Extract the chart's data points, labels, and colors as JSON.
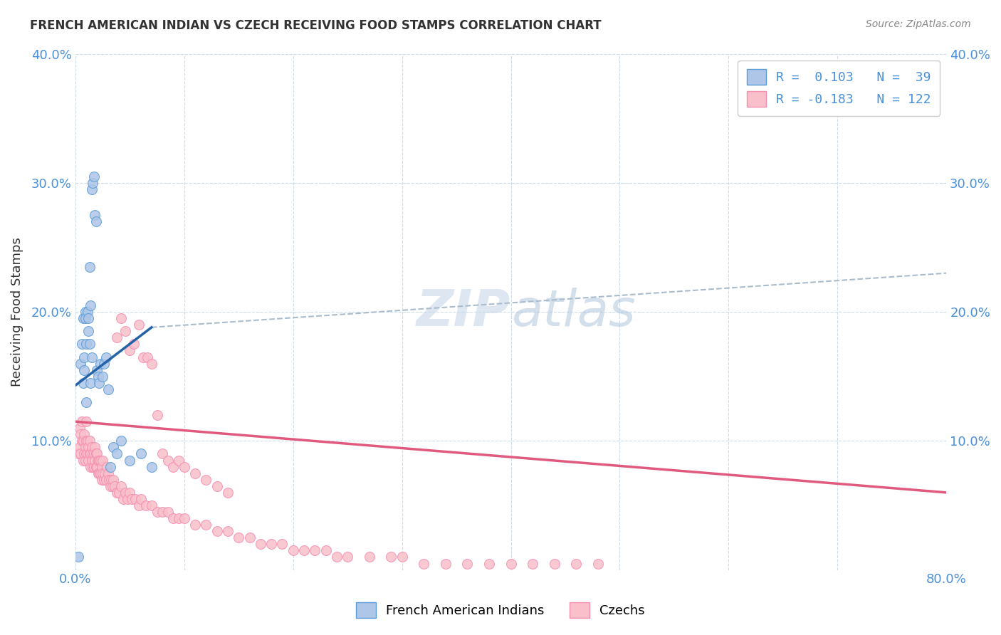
{
  "title": "FRENCH AMERICAN INDIAN VS CZECH RECEIVING FOOD STAMPS CORRELATION CHART",
  "source": "Source: ZipAtlas.com",
  "ylabel": "Receiving Food Stamps",
  "xlim": [
    0,
    0.8
  ],
  "ylim": [
    0,
    0.4
  ],
  "xticks": [
    0.0,
    0.1,
    0.2,
    0.3,
    0.4,
    0.5,
    0.6,
    0.7,
    0.8
  ],
  "yticks": [
    0.0,
    0.1,
    0.2,
    0.3,
    0.4
  ],
  "watermark": "ZIPatlas",
  "blue_color": "#5b9bd5",
  "pink_color": "#f48fb1",
  "blue_fill": "#aec6e8",
  "pink_fill": "#f9c0cb",
  "blue_line_color": "#2563a8",
  "pink_line_color": "#e05a80",
  "dashed_line_color": "#aabccc",
  "background_color": "#ffffff",
  "grid_color": "#c8d8e8",
  "blue_R": 0.103,
  "blue_N": 39,
  "pink_R": -0.183,
  "pink_N": 122,
  "blue_scatter_x": [
    0.003,
    0.005,
    0.006,
    0.007,
    0.007,
    0.008,
    0.008,
    0.009,
    0.009,
    0.01,
    0.01,
    0.011,
    0.012,
    0.012,
    0.013,
    0.013,
    0.014,
    0.014,
    0.015,
    0.015,
    0.016,
    0.017,
    0.018,
    0.019,
    0.02,
    0.021,
    0.022,
    0.023,
    0.025,
    0.026,
    0.028,
    0.03,
    0.032,
    0.035,
    0.038,
    0.042,
    0.05,
    0.06,
    0.07
  ],
  "blue_scatter_y": [
    0.01,
    0.16,
    0.175,
    0.145,
    0.195,
    0.155,
    0.165,
    0.2,
    0.195,
    0.175,
    0.13,
    0.2,
    0.195,
    0.185,
    0.175,
    0.235,
    0.205,
    0.145,
    0.165,
    0.295,
    0.3,
    0.305,
    0.275,
    0.27,
    0.155,
    0.15,
    0.145,
    0.16,
    0.15,
    0.16,
    0.165,
    0.14,
    0.08,
    0.095,
    0.09,
    0.1,
    0.085,
    0.09,
    0.08
  ],
  "pink_scatter_x": [
    0.003,
    0.004,
    0.004,
    0.005,
    0.005,
    0.006,
    0.006,
    0.007,
    0.007,
    0.008,
    0.008,
    0.009,
    0.009,
    0.01,
    0.01,
    0.01,
    0.011,
    0.011,
    0.012,
    0.012,
    0.013,
    0.013,
    0.014,
    0.014,
    0.015,
    0.015,
    0.016,
    0.016,
    0.017,
    0.017,
    0.018,
    0.018,
    0.019,
    0.019,
    0.02,
    0.02,
    0.021,
    0.021,
    0.022,
    0.022,
    0.023,
    0.023,
    0.024,
    0.024,
    0.025,
    0.025,
    0.026,
    0.027,
    0.028,
    0.029,
    0.03,
    0.031,
    0.032,
    0.033,
    0.034,
    0.035,
    0.036,
    0.038,
    0.04,
    0.042,
    0.044,
    0.046,
    0.048,
    0.05,
    0.052,
    0.055,
    0.058,
    0.06,
    0.065,
    0.07,
    0.075,
    0.08,
    0.085,
    0.09,
    0.095,
    0.1,
    0.11,
    0.12,
    0.13,
    0.14,
    0.15,
    0.16,
    0.17,
    0.18,
    0.19,
    0.2,
    0.21,
    0.22,
    0.23,
    0.24,
    0.25,
    0.27,
    0.29,
    0.3,
    0.32,
    0.34,
    0.36,
    0.38,
    0.4,
    0.42,
    0.44,
    0.46,
    0.48,
    0.038,
    0.042,
    0.046,
    0.05,
    0.054,
    0.058,
    0.062,
    0.066,
    0.07,
    0.075,
    0.08,
    0.085,
    0.09,
    0.095,
    0.1,
    0.11,
    0.12,
    0.13,
    0.14
  ],
  "pink_scatter_y": [
    0.09,
    0.095,
    0.11,
    0.09,
    0.105,
    0.1,
    0.115,
    0.085,
    0.1,
    0.09,
    0.105,
    0.085,
    0.095,
    0.09,
    0.1,
    0.115,
    0.09,
    0.1,
    0.085,
    0.095,
    0.09,
    0.1,
    0.08,
    0.09,
    0.085,
    0.095,
    0.08,
    0.09,
    0.08,
    0.09,
    0.085,
    0.095,
    0.08,
    0.09,
    0.08,
    0.09,
    0.075,
    0.085,
    0.075,
    0.085,
    0.075,
    0.085,
    0.07,
    0.08,
    0.075,
    0.085,
    0.07,
    0.075,
    0.07,
    0.08,
    0.075,
    0.07,
    0.065,
    0.07,
    0.065,
    0.07,
    0.065,
    0.06,
    0.06,
    0.065,
    0.055,
    0.06,
    0.055,
    0.06,
    0.055,
    0.055,
    0.05,
    0.055,
    0.05,
    0.05,
    0.045,
    0.045,
    0.045,
    0.04,
    0.04,
    0.04,
    0.035,
    0.035,
    0.03,
    0.03,
    0.025,
    0.025,
    0.02,
    0.02,
    0.02,
    0.015,
    0.015,
    0.015,
    0.015,
    0.01,
    0.01,
    0.01,
    0.01,
    0.01,
    0.005,
    0.005,
    0.005,
    0.005,
    0.005,
    0.005,
    0.005,
    0.005,
    0.005,
    0.18,
    0.195,
    0.185,
    0.17,
    0.175,
    0.19,
    0.165,
    0.165,
    0.16,
    0.12,
    0.09,
    0.085,
    0.08,
    0.085,
    0.08,
    0.075,
    0.07,
    0.065,
    0.06
  ],
  "blue_line_x0": 0.0,
  "blue_line_y0": 0.143,
  "blue_line_x1": 0.07,
  "blue_line_y1": 0.188,
  "dashed_line_x0": 0.07,
  "dashed_line_y0": 0.188,
  "dashed_line_x1": 0.8,
  "dashed_line_y1": 0.23,
  "pink_line_x0": 0.0,
  "pink_line_y0": 0.115,
  "pink_line_x1": 0.8,
  "pink_line_y1": 0.06
}
